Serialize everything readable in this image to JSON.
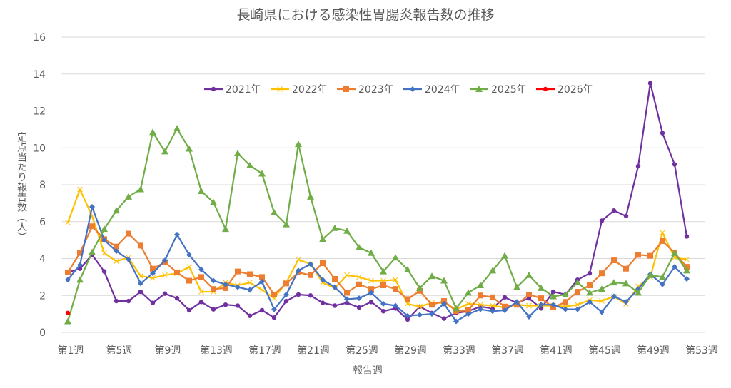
{
  "chart_data": {
    "type": "line",
    "title": "長崎県における感染性胃腸炎報告数の推移",
    "xlabel": "報告週",
    "ylabel": "定点当たり報告数（人）",
    "ylim": [
      0,
      16
    ],
    "yticks": [
      0,
      2,
      4,
      6,
      8,
      10,
      12,
      14,
      16
    ],
    "grid": true,
    "legend_position": "top-center",
    "x_tick_labels": [
      "第1週",
      "第5週",
      "第9週",
      "第13週",
      "第17週",
      "第21週",
      "第25週",
      "第29週",
      "第33週",
      "第37週",
      "第41週",
      "第45週",
      "第49週",
      "第53週"
    ],
    "x_tick_weeks": [
      1,
      5,
      9,
      13,
      17,
      21,
      25,
      29,
      33,
      37,
      41,
      45,
      49,
      53
    ],
    "x_categories_count": 53,
    "series": [
      {
        "name": "2021年",
        "color": "#7030A0",
        "marker": "circle",
        "values": [
          3.25,
          3.45,
          4.2,
          3.3,
          1.7,
          1.7,
          2.2,
          1.6,
          2.1,
          1.85,
          1.2,
          1.65,
          1.25,
          1.5,
          1.45,
          0.9,
          1.2,
          0.8,
          1.7,
          2.05,
          2.0,
          1.6,
          1.45,
          1.6,
          1.35,
          1.65,
          1.15,
          1.3,
          0.7,
          1.4,
          1.05,
          0.75,
          1.05,
          1.15,
          1.4,
          1.3,
          1.9,
          1.6,
          1.85,
          1.3,
          2.2,
          2.05,
          2.85,
          3.2,
          6.05,
          6.6,
          6.3,
          9.0,
          13.5,
          10.8,
          9.1,
          5.2
        ]
      },
      {
        "name": "2022年",
        "color": "#FFC000",
        "marker": "x",
        "values": [
          5.95,
          7.75,
          6.3,
          4.3,
          3.85,
          4.05,
          3.05,
          2.95,
          3.1,
          3.2,
          3.55,
          2.2,
          2.2,
          2.7,
          2.55,
          2.7,
          2.3,
          1.85,
          2.7,
          3.95,
          3.7,
          2.7,
          2.4,
          3.1,
          3.0,
          2.8,
          2.8,
          2.85,
          1.55,
          1.4,
          1.6,
          1.6,
          1.25,
          1.55,
          1.5,
          1.45,
          1.35,
          1.5,
          1.45,
          1.45,
          1.45,
          1.4,
          1.5,
          1.75,
          1.7,
          1.95,
          1.55,
          2.5,
          3.0,
          5.4,
          4.05,
          3.95
        ]
      },
      {
        "name": "2023年",
        "color": "#ED7D31",
        "marker": "square",
        "values": [
          3.25,
          4.3,
          5.75,
          5.05,
          4.65,
          5.35,
          4.7,
          3.45,
          3.8,
          3.25,
          2.8,
          3.0,
          2.35,
          2.4,
          3.3,
          3.15,
          3.0,
          2.05,
          2.65,
          3.25,
          3.1,
          3.75,
          2.9,
          2.15,
          2.6,
          2.35,
          2.55,
          2.35,
          1.8,
          2.25,
          1.5,
          1.7,
          1.15,
          1.2,
          2.0,
          1.9,
          1.4,
          1.5,
          2.05,
          1.85,
          1.35,
          1.65,
          2.2,
          2.55,
          3.2,
          3.9,
          3.45,
          4.2,
          4.15,
          4.95,
          4.3,
          3.55
        ]
      },
      {
        "name": "2024年",
        "color": "#4472C4",
        "marker": "diamond",
        "values": [
          2.85,
          3.65,
          6.8,
          5.0,
          4.4,
          3.95,
          2.65,
          3.2,
          3.9,
          5.3,
          4.2,
          3.4,
          2.8,
          2.6,
          2.45,
          2.3,
          2.75,
          1.25,
          2.05,
          3.35,
          3.7,
          2.85,
          2.45,
          1.8,
          1.85,
          2.15,
          1.55,
          1.45,
          0.9,
          0.95,
          1.0,
          1.55,
          0.6,
          1.0,
          1.25,
          1.15,
          1.2,
          1.65,
          0.85,
          1.5,
          1.5,
          1.25,
          1.25,
          1.65,
          1.1,
          1.95,
          1.65,
          2.35,
          3.15,
          2.6,
          3.55,
          2.9
        ]
      },
      {
        "name": "2025年",
        "color": "#70AD47",
        "marker": "triangle",
        "values": [
          0.6,
          2.85,
          4.35,
          5.6,
          6.6,
          7.35,
          7.75,
          10.85,
          9.8,
          11.05,
          9.95,
          7.65,
          7.05,
          5.6,
          9.7,
          9.05,
          8.6,
          6.5,
          5.85,
          10.2,
          7.35,
          5.05,
          5.65,
          5.5,
          4.6,
          4.3,
          3.3,
          4.05,
          3.4,
          2.4,
          3.05,
          2.8,
          1.3,
          2.15,
          2.55,
          3.35,
          4.15,
          2.45,
          3.1,
          2.4,
          1.95,
          2.05,
          2.7,
          2.15,
          2.35,
          2.7,
          2.65,
          2.15,
          3.1,
          3.0,
          4.3,
          3.35
        ]
      },
      {
        "name": "2026年",
        "color": "#FF0000",
        "marker": "circle",
        "values": [
          1.05
        ]
      }
    ]
  }
}
